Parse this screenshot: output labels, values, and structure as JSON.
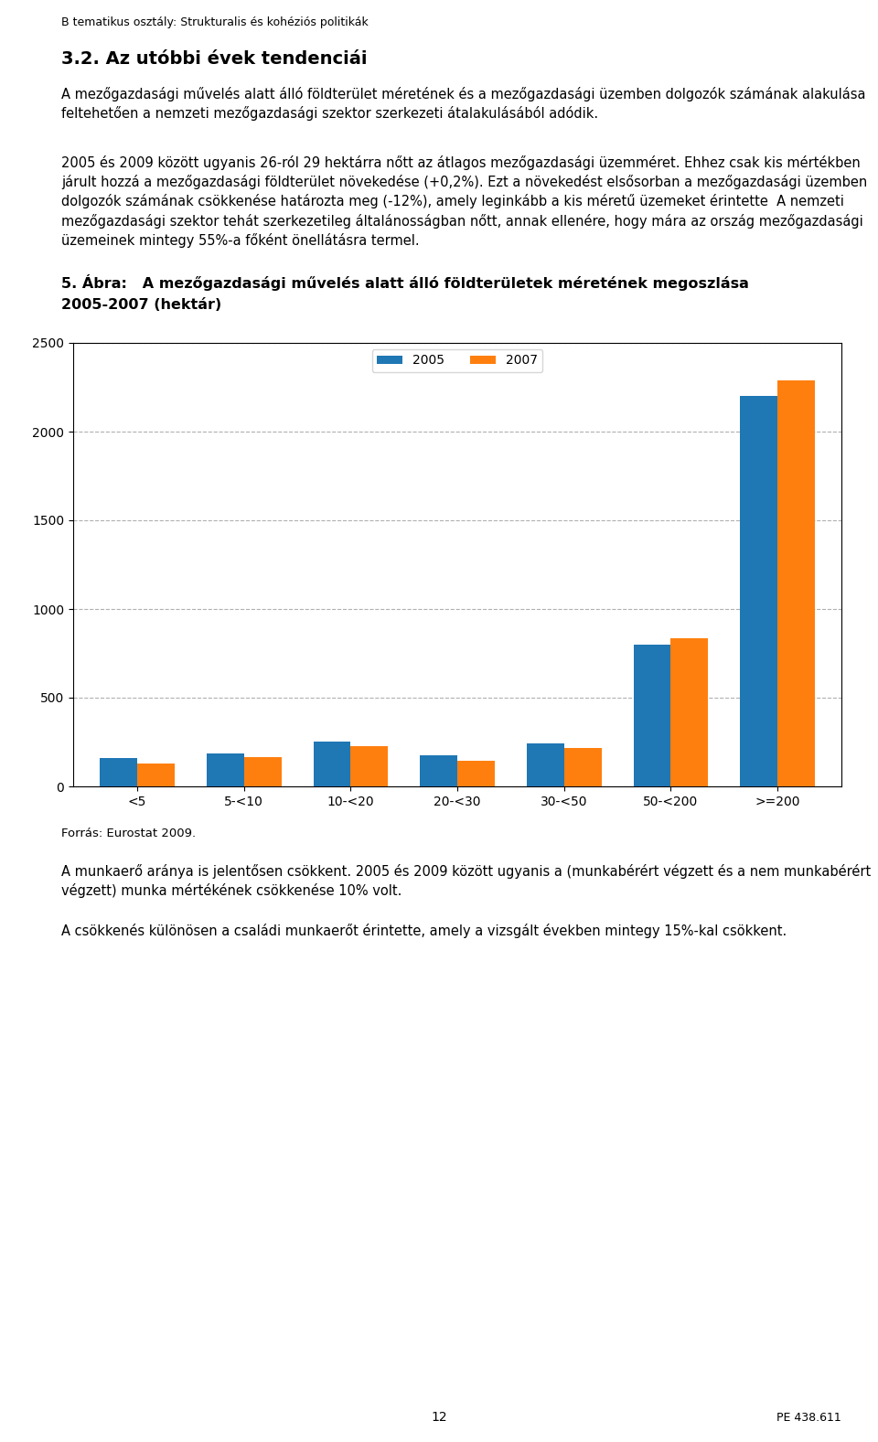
{
  "chart_data": {
    "type": "bar",
    "title": "5. Ábra:   A mezőgazdasági művelés alatt álló földterületek méretének megoszlása",
    "subtitle": "2005-2007 (hektár)",
    "categories": [
      "<5",
      "5-<10",
      "10-<20",
      "20-<30",
      "30-<50",
      "50-<200",
      ">=200"
    ],
    "series": [
      {
        "name": "2005",
        "values": [
          160,
          185,
          255,
          175,
          240,
          800,
          2200
        ]
      },
      {
        "name": "2007",
        "values": [
          130,
          165,
          225,
          145,
          215,
          835,
          2290
        ]
      }
    ],
    "ylim": [
      0,
      2500
    ],
    "yticks": [
      0,
      500,
      1000,
      1500,
      2000,
      2500
    ],
    "grid": true,
    "legend": "upper center",
    "annotations": [
      "B tematikus osztály: Strukturalis és kohéziós politikák",
      "3.2. Az utóbbi évek tendenciái",
      "A mezőgazdasági művelés alatt álló földterület méretének és a mezőgazdasági üzemben dolgozók számának alakulása feltehetően a nemzeti mezőgazdasági szektor szerkezeti átalakulásából adódik.",
      "2005 és 2009 között ugyanis 26-ról 29 hektárra nőtt az átlagos mezőgazdasági üzemméret. Ehhez csak kis mértékben járult hozzá a mezőgazdasági földterület növekedése (+0,2%). Ezt a növekedést elsősorban a mezőgazdasági üzemben dolgozók számának csökkenése határozta meg (-12%), amely leginkább a kis méretű üzemeket érintette  A nemzeti mezőgazdasági szektor tehát szerkezetileg általánosságban nőtt, annak ellenére, hogy mára az ország mezőgazdasági üzemeinek mintegy 55%-a főként önellátásra termel.",
      "Forrás: Eurostat 2009.",
      "A munkaerő aránya is jelentősen csökkent. 2005 és 2009 között ugyanis a (munkabérért végzett és a nem munkabérért végzett) munka mértékének csökkenése 10% volt.",
      "A csökkenés különösen a családi munkaerőt érintette, amely a vizsgált években mintegy 15%-kal csökkent.",
      "12",
      "PE 438.611"
    ]
  }
}
